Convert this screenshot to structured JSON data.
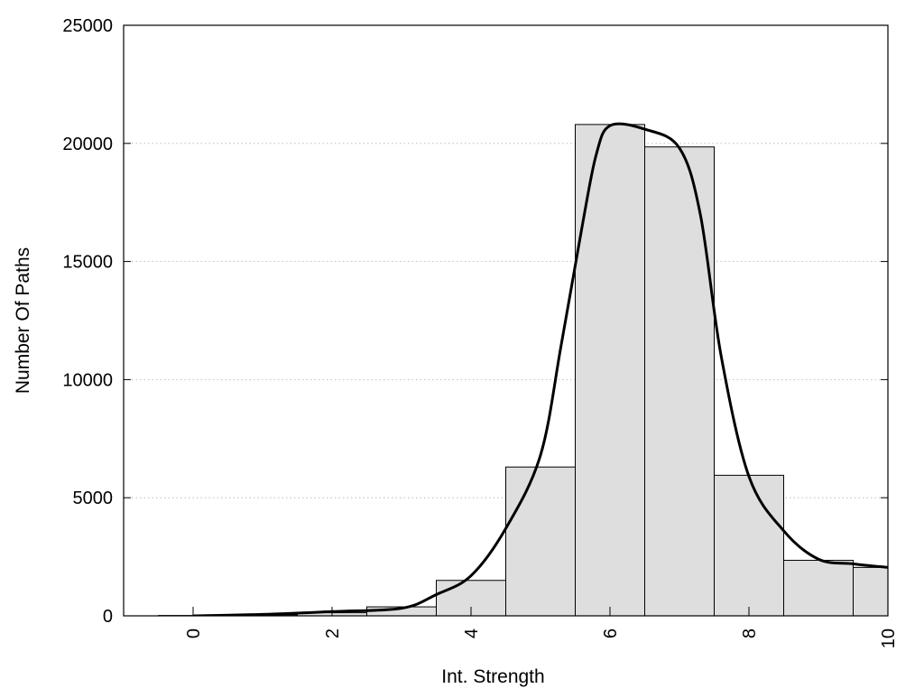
{
  "chart_data": {
    "type": "bar",
    "title": "",
    "xlabel": "Int. Strength",
    "ylabel": "Number Of Paths",
    "xlim": [
      -1,
      10
    ],
    "ylim": [
      0,
      25000
    ],
    "grid": "horizontal dotted",
    "x_ticks": [
      "0",
      "2",
      "4",
      "6",
      "8",
      "10"
    ],
    "y_ticks": [
      "0",
      "5000",
      "10000",
      "15000",
      "20000",
      "25000"
    ],
    "categories": [
      0,
      1,
      2,
      3,
      4,
      5,
      6,
      7,
      8,
      9,
      10
    ],
    "values": [
      15,
      40,
      130,
      380,
      1500,
      6300,
      20800,
      19850,
      5950,
      2350,
      2050
    ],
    "bar_color": "#dedede",
    "fit_curve": {
      "style": "smooth line",
      "color": "#000000",
      "x": [
        0,
        1,
        2,
        3,
        3.5,
        4,
        4.5,
        5,
        5.3,
        5.6,
        5.8,
        6,
        6.5,
        7,
        7.3,
        7.6,
        8,
        8.5,
        9,
        9.5,
        10
      ],
      "y": [
        0,
        60,
        180,
        320,
        900,
        1700,
        3700,
        6800,
        11500,
        16500,
        19500,
        20750,
        20600,
        19800,
        17000,
        11000,
        5900,
        3600,
        2400,
        2200,
        2050
      ]
    }
  }
}
